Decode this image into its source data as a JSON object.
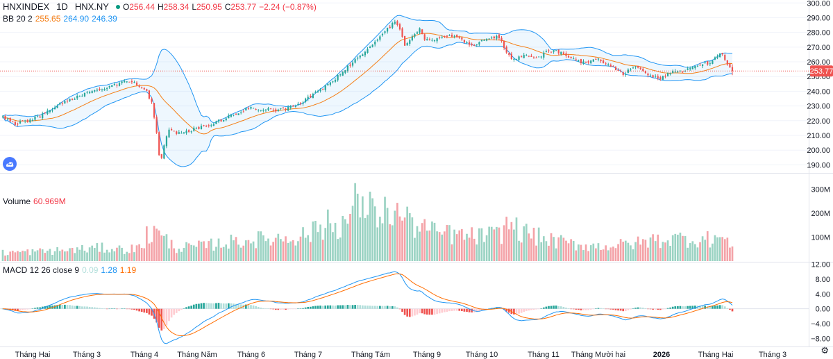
{
  "header": {
    "symbol": "HNXINDEX",
    "interval": "1D",
    "exchange": "HNX.NY",
    "ohlc": {
      "open_label": "O",
      "open": "256.44",
      "high_label": "H",
      "high": "258.34",
      "low_label": "L",
      "low": "250.95",
      "close_label": "C",
      "close": "253.77",
      "change": "−2.24 (−0.87%)"
    }
  },
  "indicators": {
    "bb": {
      "label": "BB 20 2",
      "basis": "255.65",
      "upper": "264.90",
      "lower": "246.39"
    },
    "volume": {
      "label": "Volume",
      "value": "60.969M"
    },
    "macd": {
      "label": "MACD 12 26 close 9",
      "hist": "0.09",
      "macd": "1.28",
      "signal": "1.19"
    }
  },
  "colors": {
    "up": "#26a69a",
    "down": "#ef5350",
    "bb_basis": "#f57f17",
    "bb_band": "#2196f3",
    "bb_fill": "rgba(33,150,243,0.08)",
    "macd_line": "#2196f3",
    "signal_line": "#ff6d00",
    "vol_up": "#9bd3c3",
    "vol_down": "#f4a3a8",
    "hist_up_strong": "#26a69a",
    "hist_up_weak": "#b2dfdb",
    "hist_down_strong": "#ef5350",
    "hist_down_weak": "#ffcdd2",
    "price_line": "#ef5350",
    "grid": "#f0f3fa"
  },
  "price_label": "253.77",
  "icons": {
    "logo": "tradingview-cloud-icon",
    "settings": "gear-icon"
  },
  "chart_data": {
    "type": "candlestick",
    "x_ticks": [
      "Tháng Hai",
      "Tháng 3",
      "Tháng 4",
      "Tháng Năm",
      "Tháng 6",
      "Tháng 7",
      "Tháng Tám",
      "Tháng 9",
      "Tháng 10",
      "Tháng 11",
      "Tháng Mười hai",
      "2026",
      "Tháng Hai",
      "Tháng 3"
    ],
    "price_axis": {
      "ticks": [
        "300.00",
        "290.00",
        "280.00",
        "270.00",
        "260.00",
        "250.00",
        "240.00",
        "230.00",
        "220.00",
        "210.00",
        "200.00",
        "190.00"
      ],
      "ylim": [
        185,
        302
      ]
    },
    "volume_axis": {
      "ticks": [
        "300M",
        "200M",
        "100M"
      ],
      "ylim": [
        0,
        330
      ]
    },
    "macd_axis": {
      "ticks": [
        "12.00",
        "8.00",
        "4.00",
        "0.00",
        "−4.00",
        "−8.00"
      ],
      "ylim": [
        -10,
        12.5
      ]
    },
    "close_anchors": [
      [
        0,
        222
      ],
      [
        5,
        218
      ],
      [
        10,
        220
      ],
      [
        15,
        223
      ],
      [
        20,
        228
      ],
      [
        25,
        233
      ],
      [
        30,
        236
      ],
      [
        35,
        239
      ],
      [
        40,
        241
      ],
      [
        45,
        244
      ],
      [
        50,
        247
      ],
      [
        52,
        247
      ],
      [
        55,
        244
      ],
      [
        58,
        240
      ],
      [
        60,
        232
      ],
      [
        62,
        212
      ],
      [
        63,
        197
      ],
      [
        64,
        195
      ],
      [
        65,
        203
      ],
      [
        67,
        214
      ],
      [
        70,
        211
      ],
      [
        75,
        213
      ],
      [
        80,
        216
      ],
      [
        85,
        218
      ],
      [
        90,
        222
      ],
      [
        95,
        226
      ],
      [
        100,
        229
      ],
      [
        105,
        228
      ],
      [
        110,
        227
      ],
      [
        115,
        229
      ],
      [
        120,
        232
      ],
      [
        125,
        238
      ],
      [
        130,
        243
      ],
      [
        135,
        250
      ],
      [
        140,
        258
      ],
      [
        145,
        266
      ],
      [
        150,
        273
      ],
      [
        155,
        282
      ],
      [
        158,
        287
      ],
      [
        160,
        283
      ],
      [
        162,
        270
      ],
      [
        165,
        277
      ],
      [
        168,
        282
      ],
      [
        170,
        274
      ],
      [
        175,
        276
      ],
      [
        180,
        278
      ],
      [
        185,
        275
      ],
      [
        190,
        271
      ],
      [
        195,
        276
      ],
      [
        200,
        277
      ],
      [
        203,
        266
      ],
      [
        205,
        262
      ],
      [
        210,
        264
      ],
      [
        215,
        262
      ],
      [
        220,
        268
      ],
      [
        225,
        266
      ],
      [
        230,
        262
      ],
      [
        235,
        259
      ],
      [
        240,
        262
      ],
      [
        245,
        257
      ],
      [
        250,
        252
      ],
      [
        255,
        256
      ],
      [
        260,
        251
      ],
      [
        265,
        249
      ],
      [
        270,
        254
      ],
      [
        275,
        254
      ],
      [
        280,
        257
      ],
      [
        282,
        259
      ],
      [
        285,
        258
      ],
      [
        288,
        264
      ],
      [
        290,
        266
      ],
      [
        292,
        258
      ],
      [
        294,
        254.44
      ]
    ],
    "last_candle": {
      "open": 256.44,
      "high": 258.34,
      "low": 250.95,
      "close": 253.77
    },
    "volume_anchors": [
      [
        0,
        35
      ],
      [
        20,
        42
      ],
      [
        40,
        55
      ],
      [
        50,
        48
      ],
      [
        55,
        55
      ],
      [
        58,
        75
      ],
      [
        61,
        125
      ],
      [
        64,
        100
      ],
      [
        70,
        55
      ],
      [
        80,
        62
      ],
      [
        90,
        78
      ],
      [
        100,
        88
      ],
      [
        110,
        95
      ],
      [
        120,
        105
      ],
      [
        125,
        118
      ],
      [
        130,
        135
      ],
      [
        135,
        150
      ],
      [
        140,
        175
      ],
      [
        145,
        230
      ],
      [
        150,
        200
      ],
      [
        155,
        210
      ],
      [
        160,
        190
      ],
      [
        165,
        155
      ],
      [
        170,
        125
      ],
      [
        180,
        110
      ],
      [
        190,
        102
      ],
      [
        200,
        110
      ],
      [
        205,
        150
      ],
      [
        210,
        118
      ],
      [
        220,
        88
      ],
      [
        230,
        70
      ],
      [
        240,
        62
      ],
      [
        250,
        68
      ],
      [
        260,
        80
      ],
      [
        270,
        95
      ],
      [
        280,
        90
      ],
      [
        290,
        95
      ],
      [
        294,
        61
      ]
    ],
    "vol_spikes": [
      [
        58,
        145
      ],
      [
        62,
        135
      ],
      [
        125,
        165
      ],
      [
        131,
        215
      ],
      [
        142,
        325
      ],
      [
        145,
        270
      ],
      [
        150,
        228
      ],
      [
        155,
        222
      ],
      [
        158,
        210
      ],
      [
        164,
        200
      ],
      [
        170,
        175
      ],
      [
        180,
        150
      ],
      [
        203,
        185
      ],
      [
        210,
        145
      ],
      [
        262,
        112
      ],
      [
        270,
        108
      ],
      [
        287,
        108
      ]
    ]
  }
}
